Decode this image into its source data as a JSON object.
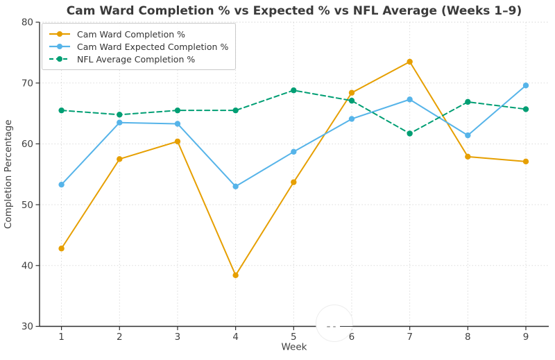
{
  "chart_data": {
    "type": "line",
    "title": "Cam Ward Completion % vs Expected % vs NFL Average (Weeks 1–9)",
    "xlabel": "Week",
    "ylabel": "Completion Percentage",
    "x": [
      1,
      2,
      3,
      4,
      5,
      6,
      7,
      8,
      9
    ],
    "x_tick_labels": [
      "1",
      "2",
      "3",
      "4",
      "5",
      "6",
      "7",
      "8",
      "9"
    ],
    "yticks": [
      30,
      40,
      50,
      60,
      70,
      80
    ],
    "ylim": [
      30,
      80
    ],
    "grid": true,
    "legend_position": "upper left",
    "series": [
      {
        "name": "Cam Ward Completion %",
        "color": "#E69F00",
        "line_style": "solid",
        "marker": "circle",
        "values": [
          42.8,
          57.5,
          60.4,
          38.4,
          53.7,
          68.4,
          73.5,
          57.9,
          57.1
        ]
      },
      {
        "name": "Cam Ward Expected Completion %",
        "color": "#56B4E9",
        "line_style": "solid",
        "marker": "circle",
        "values": [
          53.3,
          63.5,
          63.3,
          53.0,
          58.7,
          64.1,
          67.3,
          61.4,
          69.6
        ]
      },
      {
        "name": "NFL Average Completion %",
        "color": "#009E73",
        "line_style": "dashed",
        "marker": "circle",
        "values": [
          65.5,
          64.8,
          65.5,
          65.5,
          68.8,
          67.1,
          61.7,
          66.9,
          65.7
        ]
      }
    ]
  }
}
